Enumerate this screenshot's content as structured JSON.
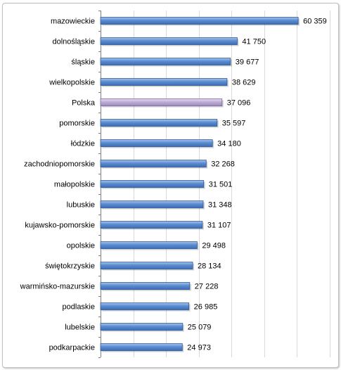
{
  "chart_data": {
    "type": "bar",
    "orientation": "horizontal",
    "categories": [
      "mazowieckie",
      "dolnośląskie",
      "śląskie",
      "wielkopolskie",
      "Polska",
      "pomorskie",
      "łódzkie",
      "zachodniopomorskie",
      "małopolskie",
      "lubuskie",
      "kujawsko-pomorskie",
      "opolskie",
      "świętokrzyskie",
      "warmińsko-mazurskie",
      "podlaskie",
      "lubelskie",
      "podkarpackie"
    ],
    "values": [
      60359,
      41750,
      39677,
      38629,
      37096,
      35597,
      34180,
      32268,
      31501,
      31348,
      31107,
      29498,
      28134,
      27228,
      26985,
      25079,
      24973
    ],
    "value_labels": [
      "60 359",
      "41 750",
      "39 677",
      "38 629",
      "37 096",
      "35 597",
      "34 180",
      "32 268",
      "31 501",
      "31 348",
      "31 107",
      "29 498",
      "28 134",
      "27 228",
      "26 985",
      "25 079",
      "24 973"
    ],
    "highlight_category": "Polska",
    "xlim": [
      0,
      70000
    ],
    "grid": true,
    "title": "",
    "xlabel": "",
    "ylabel": "",
    "colors": {
      "bar": "#4f81bd",
      "bar_highlight": "#b3a2c7",
      "grid": "#d9d9d9"
    }
  }
}
